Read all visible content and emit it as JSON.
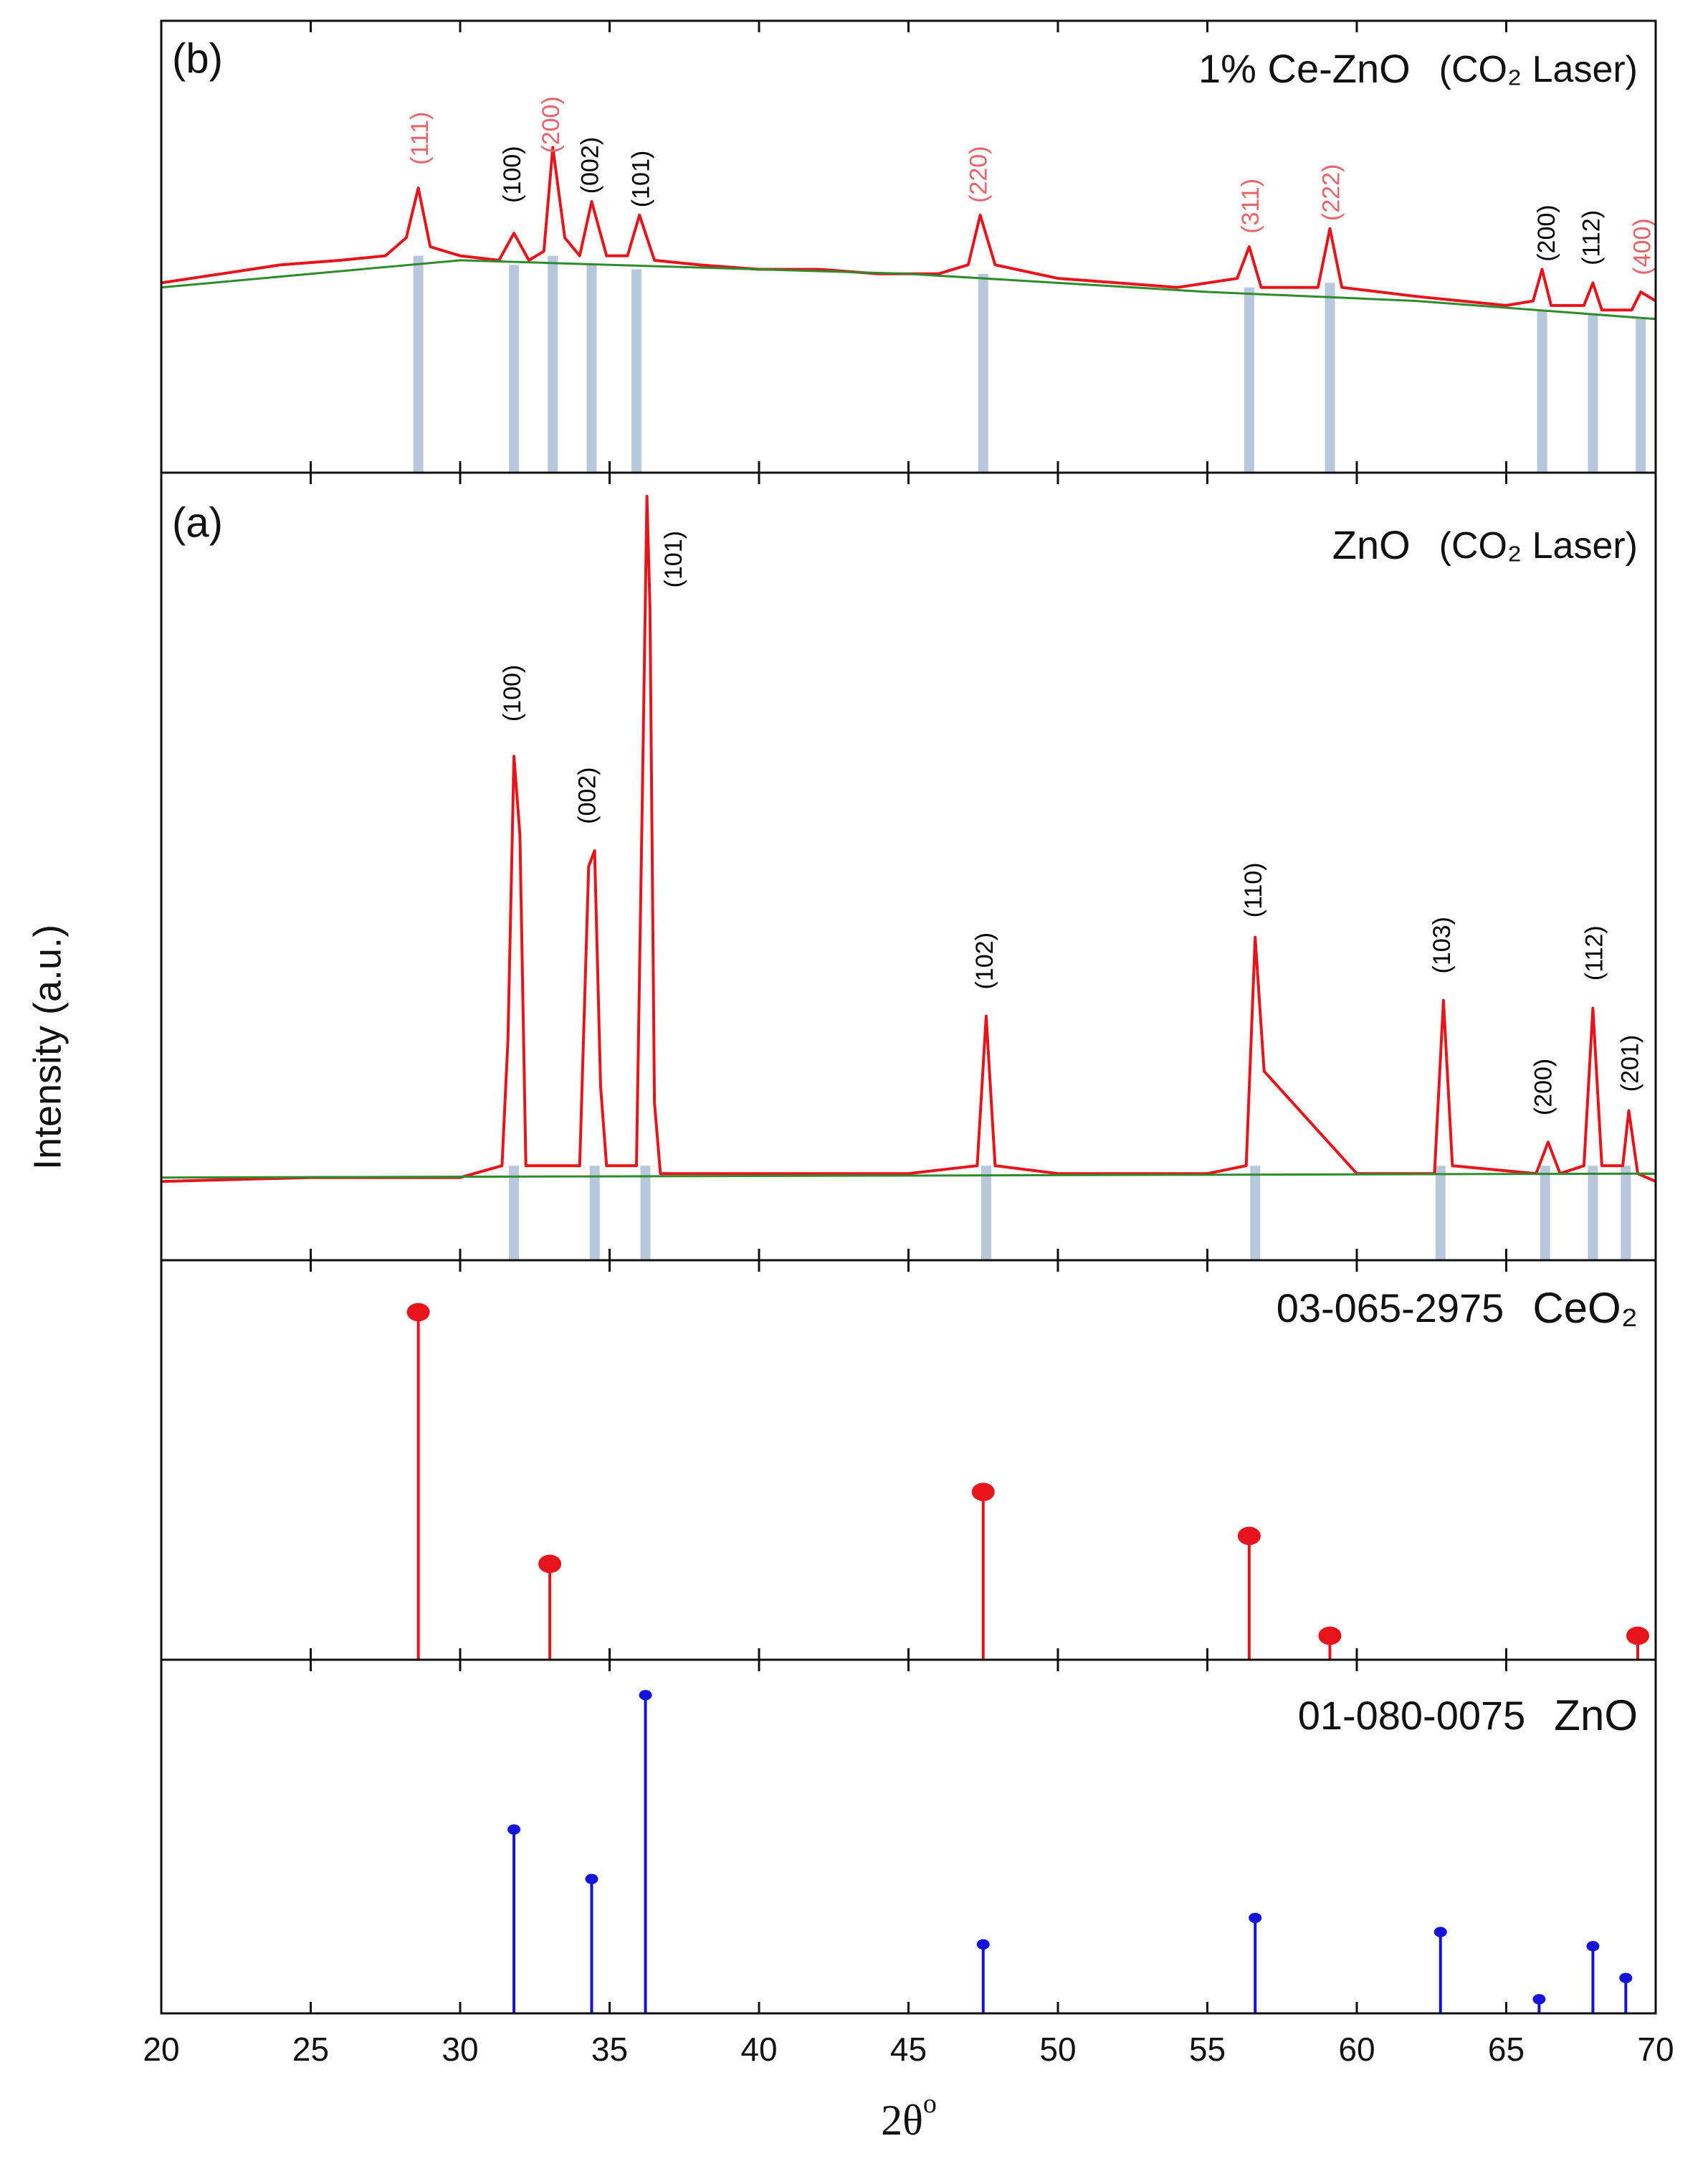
{
  "chart_data": {
    "type": "multi-panel",
    "ylabel": "Intensity (a.u.)",
    "xlabel": "2θ",
    "xlabel_sup": "o",
    "xlim": [
      20,
      70
    ],
    "xticks": [
      20,
      25,
      30,
      35,
      40,
      45,
      50,
      55,
      60,
      65,
      70
    ],
    "panels": [
      {
        "type": "line",
        "label": "(b)",
        "title": "1% Ce-ZnO",
        "subtitle": "(CO₂ Laser)",
        "ylim": [
          0,
          100
        ],
        "series": [
          {
            "color": "#e8141c",
            "x": [
              20,
              22,
              24,
              26,
              27.5,
              28.2,
              28.6,
              29.0,
              30,
              31.3,
              31.8,
              32.3,
              32.8,
              33.1,
              33.5,
              34.0,
              34.4,
              34.9,
              35.6,
              36.0,
              36.5,
              38,
              40,
              42,
              44,
              46,
              47.0,
              47.4,
              47.9,
              50,
              52,
              54,
              56.0,
              56.4,
              56.8,
              58.7,
              59.1,
              59.5,
              62,
              65,
              65.9,
              66.2,
              66.5,
              67.6,
              67.9,
              68.2,
              69.2,
              69.5,
              70
            ],
            "values": [
              42,
              44,
              46,
              47,
              48,
              52,
              63,
              50,
              48,
              47,
              53,
              47,
              49,
              72,
              52,
              48,
              60,
              48,
              48,
              57,
              47,
              46,
              45,
              45,
              44,
              44,
              46,
              57,
              46,
              43,
              42,
              41,
              43,
              50,
              41,
              41,
              54,
              41,
              39,
              37,
              38,
              45,
              37,
              37,
              42,
              36,
              36,
              40,
              38
            ]
          },
          {
            "color": "#2e8b2e",
            "x": [
              20,
              30,
              35,
              45,
              55,
              62,
              70
            ],
            "values": [
              41,
              47,
              46,
              44,
              40,
              38,
              34
            ]
          }
        ],
        "bars": {
          "color": "#b7c8dc",
          "x": [
            28.6,
            31.8,
            33.1,
            34.4,
            35.9,
            47.5,
            56.4,
            59.1,
            66.2,
            67.9,
            69.5
          ],
          "values": [
            48,
            46,
            48,
            46,
            45,
            44,
            41,
            42,
            36,
            35,
            34
          ]
        },
        "annotations": [
          {
            "text": "(111)",
            "x": 28.7,
            "y": 74,
            "color": "#e8646a"
          },
          {
            "text": "(100)",
            "x": 31.8,
            "y": 66,
            "color": "#000000"
          },
          {
            "text": "(200)",
            "x": 33.1,
            "y": 77,
            "color": "#e8646a"
          },
          {
            "text": "(002)",
            "x": 34.4,
            "y": 68,
            "color": "#000000"
          },
          {
            "text": "(101)",
            "x": 36.1,
            "y": 65,
            "color": "#000000"
          },
          {
            "text": "(220)",
            "x": 47.4,
            "y": 66,
            "color": "#e8646a"
          },
          {
            "text": "(311)",
            "x": 56.5,
            "y": 59,
            "color": "#e8646a"
          },
          {
            "text": "(222)",
            "x": 59.2,
            "y": 62,
            "color": "#e8646a"
          },
          {
            "text": "(200)",
            "x": 66.4,
            "y": 53,
            "color": "#000000"
          },
          {
            "text": "(112)",
            "x": 67.9,
            "y": 52,
            "color": "#000000"
          },
          {
            "text": "(400)",
            "x": 69.6,
            "y": 50,
            "color": "#e8646a"
          }
        ]
      },
      {
        "type": "line",
        "label": "(a)",
        "title": "ZnO",
        "subtitle": "(CO₂ Laser)",
        "ylim": [
          0,
          100
        ],
        "series": [
          {
            "color": "#e8141c",
            "x": [
              20,
              25,
              30,
              31.4,
              31.6,
              31.8,
              32.0,
              32.2,
              34.0,
              34.3,
              34.5,
              34.7,
              34.9,
              35.9,
              36.1,
              36.25,
              36.35,
              36.5,
              36.7,
              40,
              45,
              47.3,
              47.6,
              47.9,
              50,
              55,
              56.3,
              56.6,
              56.9,
              60,
              62.6,
              62.9,
              63.2,
              66.0,
              66.4,
              66.8,
              67.6,
              67.9,
              68.2,
              68.9,
              69.1,
              69.4,
              70
            ],
            "values": [
              10,
              10.5,
              10.5,
              12,
              28,
              64,
              54,
              12,
              12,
              50,
              52,
              22,
              12,
              12,
              60,
              97,
              83,
              20,
              11,
              11,
              11,
              12,
              31,
              12,
              11,
              11,
              12,
              41,
              24,
              11,
              11,
              33,
              12,
              11,
              15,
              11,
              12,
              32,
              12,
              12,
              19,
              11,
              10
            ]
          },
          {
            "color": "#2e8b2e",
            "x": [
              20,
              70
            ],
            "values": [
              10.5,
              11
            ]
          }
        ],
        "bars": {
          "color": "#b7c8dc",
          "x": [
            31.8,
            34.5,
            36.2,
            47.6,
            56.6,
            62.8,
            66.3,
            67.9,
            69.0
          ],
          "values": [
            12,
            12,
            12,
            12,
            12,
            12,
            12,
            12,
            12
          ]
        },
        "annotations": [
          {
            "text": "(100)",
            "x": 31.8,
            "y": 72,
            "color": "#000000"
          },
          {
            "text": "(002)",
            "x": 34.3,
            "y": 59,
            "color": "#000000"
          },
          {
            "text": "(101)",
            "x": 37.2,
            "y": 89,
            "color": "#000000"
          },
          {
            "text": "(102)",
            "x": 47.6,
            "y": 38,
            "color": "#000000"
          },
          {
            "text": "(110)",
            "x": 56.6,
            "y": 47,
            "color": "#000000"
          },
          {
            "text": "(103)",
            "x": 62.9,
            "y": 40,
            "color": "#000000"
          },
          {
            "text": "(200)",
            "x": 66.3,
            "y": 22,
            "color": "#000000"
          },
          {
            "text": "(112)",
            "x": 68.0,
            "y": 39,
            "color": "#000000"
          },
          {
            "text": "(201)",
            "x": 69.2,
            "y": 25,
            "color": "#000000"
          }
        ]
      },
      {
        "type": "stem",
        "title": "03-065-2975",
        "subtitle": "CeO₂",
        "ylim": [
          0,
          100
        ],
        "color": "#e8141c",
        "marker": "large",
        "x": [
          28.6,
          33.0,
          47.5,
          56.4,
          59.1,
          69.4
        ],
        "values": [
          87,
          24,
          42,
          31,
          6,
          6
        ]
      },
      {
        "type": "stem",
        "title": "01-080-0075",
        "subtitle": "ZnO",
        "ylim": [
          0,
          100
        ],
        "color": "#1414d8",
        "marker": "small",
        "x": [
          31.8,
          34.4,
          36.2,
          47.5,
          56.6,
          62.8,
          66.1,
          67.9,
          69.0
        ],
        "values": [
          52,
          38,
          90,
          19.5,
          27,
          23,
          4,
          19,
          10
        ]
      }
    ]
  }
}
